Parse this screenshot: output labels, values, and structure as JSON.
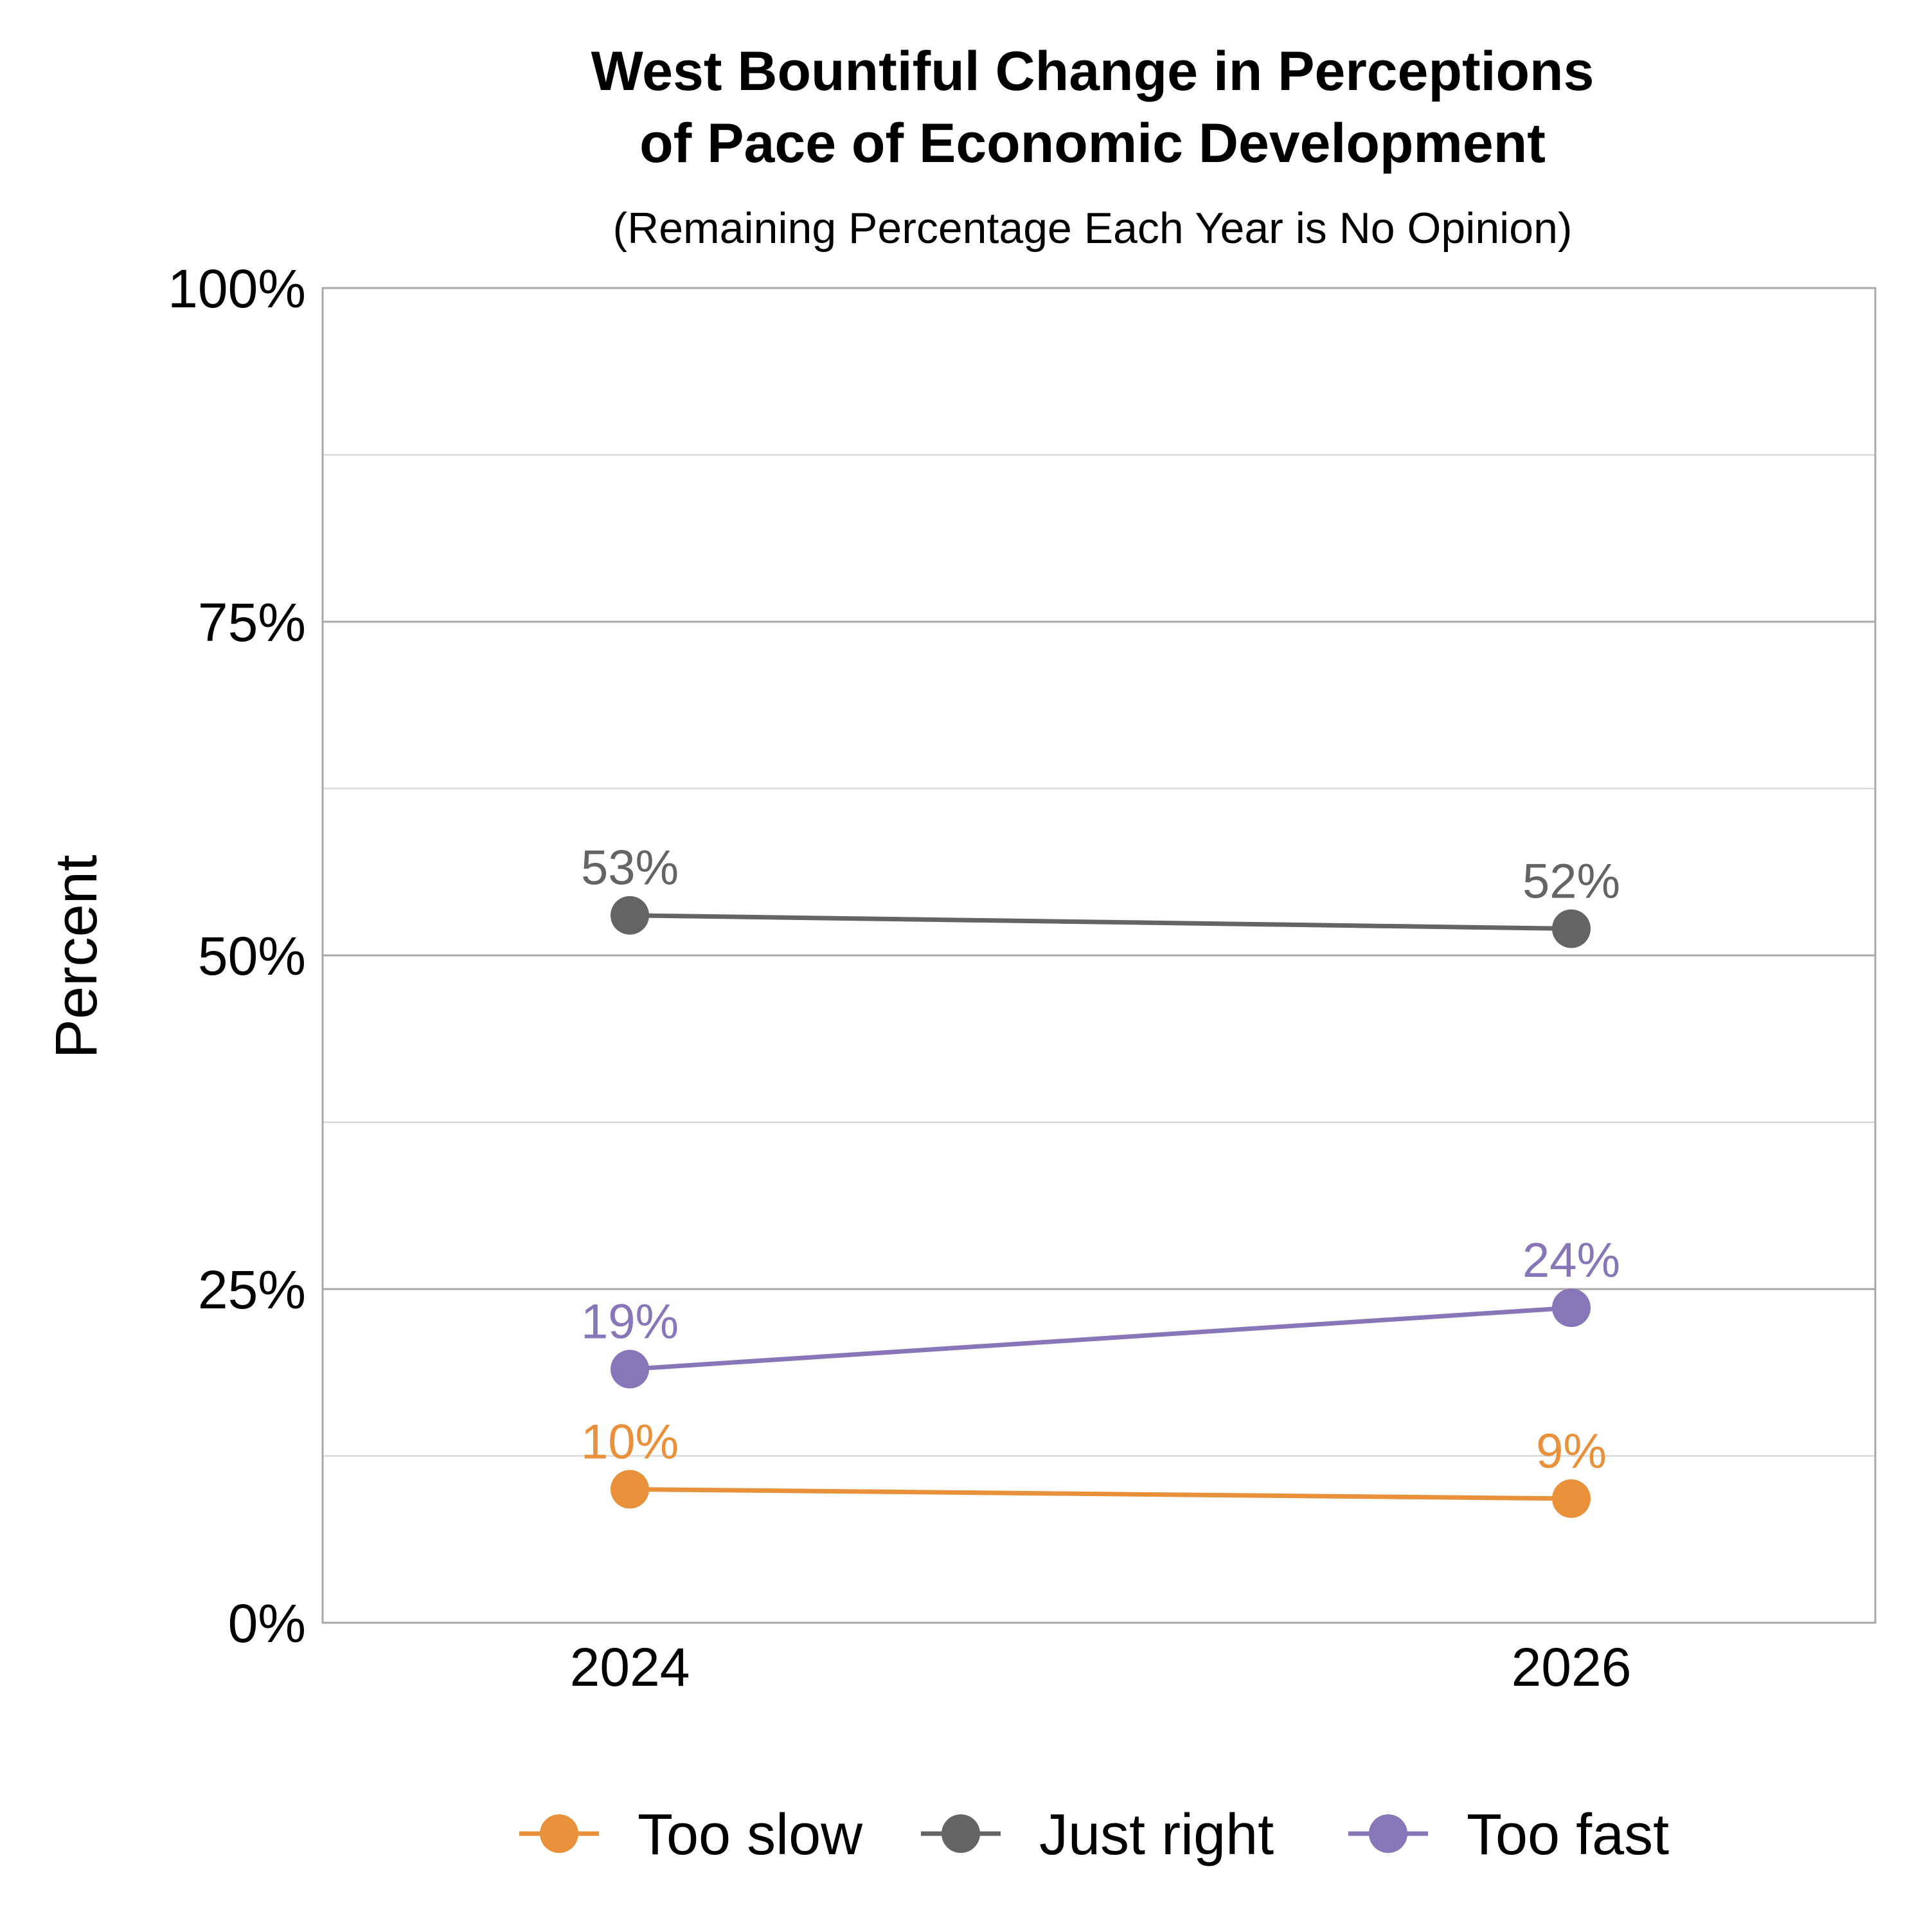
{
  "chart_data": {
    "type": "line",
    "title_lines": [
      "West Bountiful Change in Perceptions",
      "of Pace of Economic Development"
    ],
    "subtitle": "(Remaining Percentage Each Year is No Opinion)",
    "xlabel": "",
    "ylabel": "Percent",
    "categories": [
      "2024",
      "2026"
    ],
    "ylim": [
      0,
      100
    ],
    "yticks": [
      0,
      25,
      50,
      75,
      100
    ],
    "ytick_labels": [
      "0%",
      "25%",
      "50%",
      "75%",
      "100%"
    ],
    "minor_grid": [
      12.5,
      37.5,
      62.5,
      87.5
    ],
    "grid": true,
    "legend_position": "bottom",
    "series": [
      {
        "name": "Too slow",
        "color": "#E8903A",
        "values": [
          10,
          9.3
        ],
        "labels": [
          "10%",
          "9%"
        ]
      },
      {
        "name": "Just right",
        "color": "#646464",
        "values": [
          53,
          52
        ],
        "labels": [
          "53%",
          "52%"
        ]
      },
      {
        "name": "Too fast",
        "color": "#8877B8",
        "values": [
          19,
          23.6
        ],
        "labels": [
          "19%",
          "24%"
        ]
      }
    ]
  }
}
